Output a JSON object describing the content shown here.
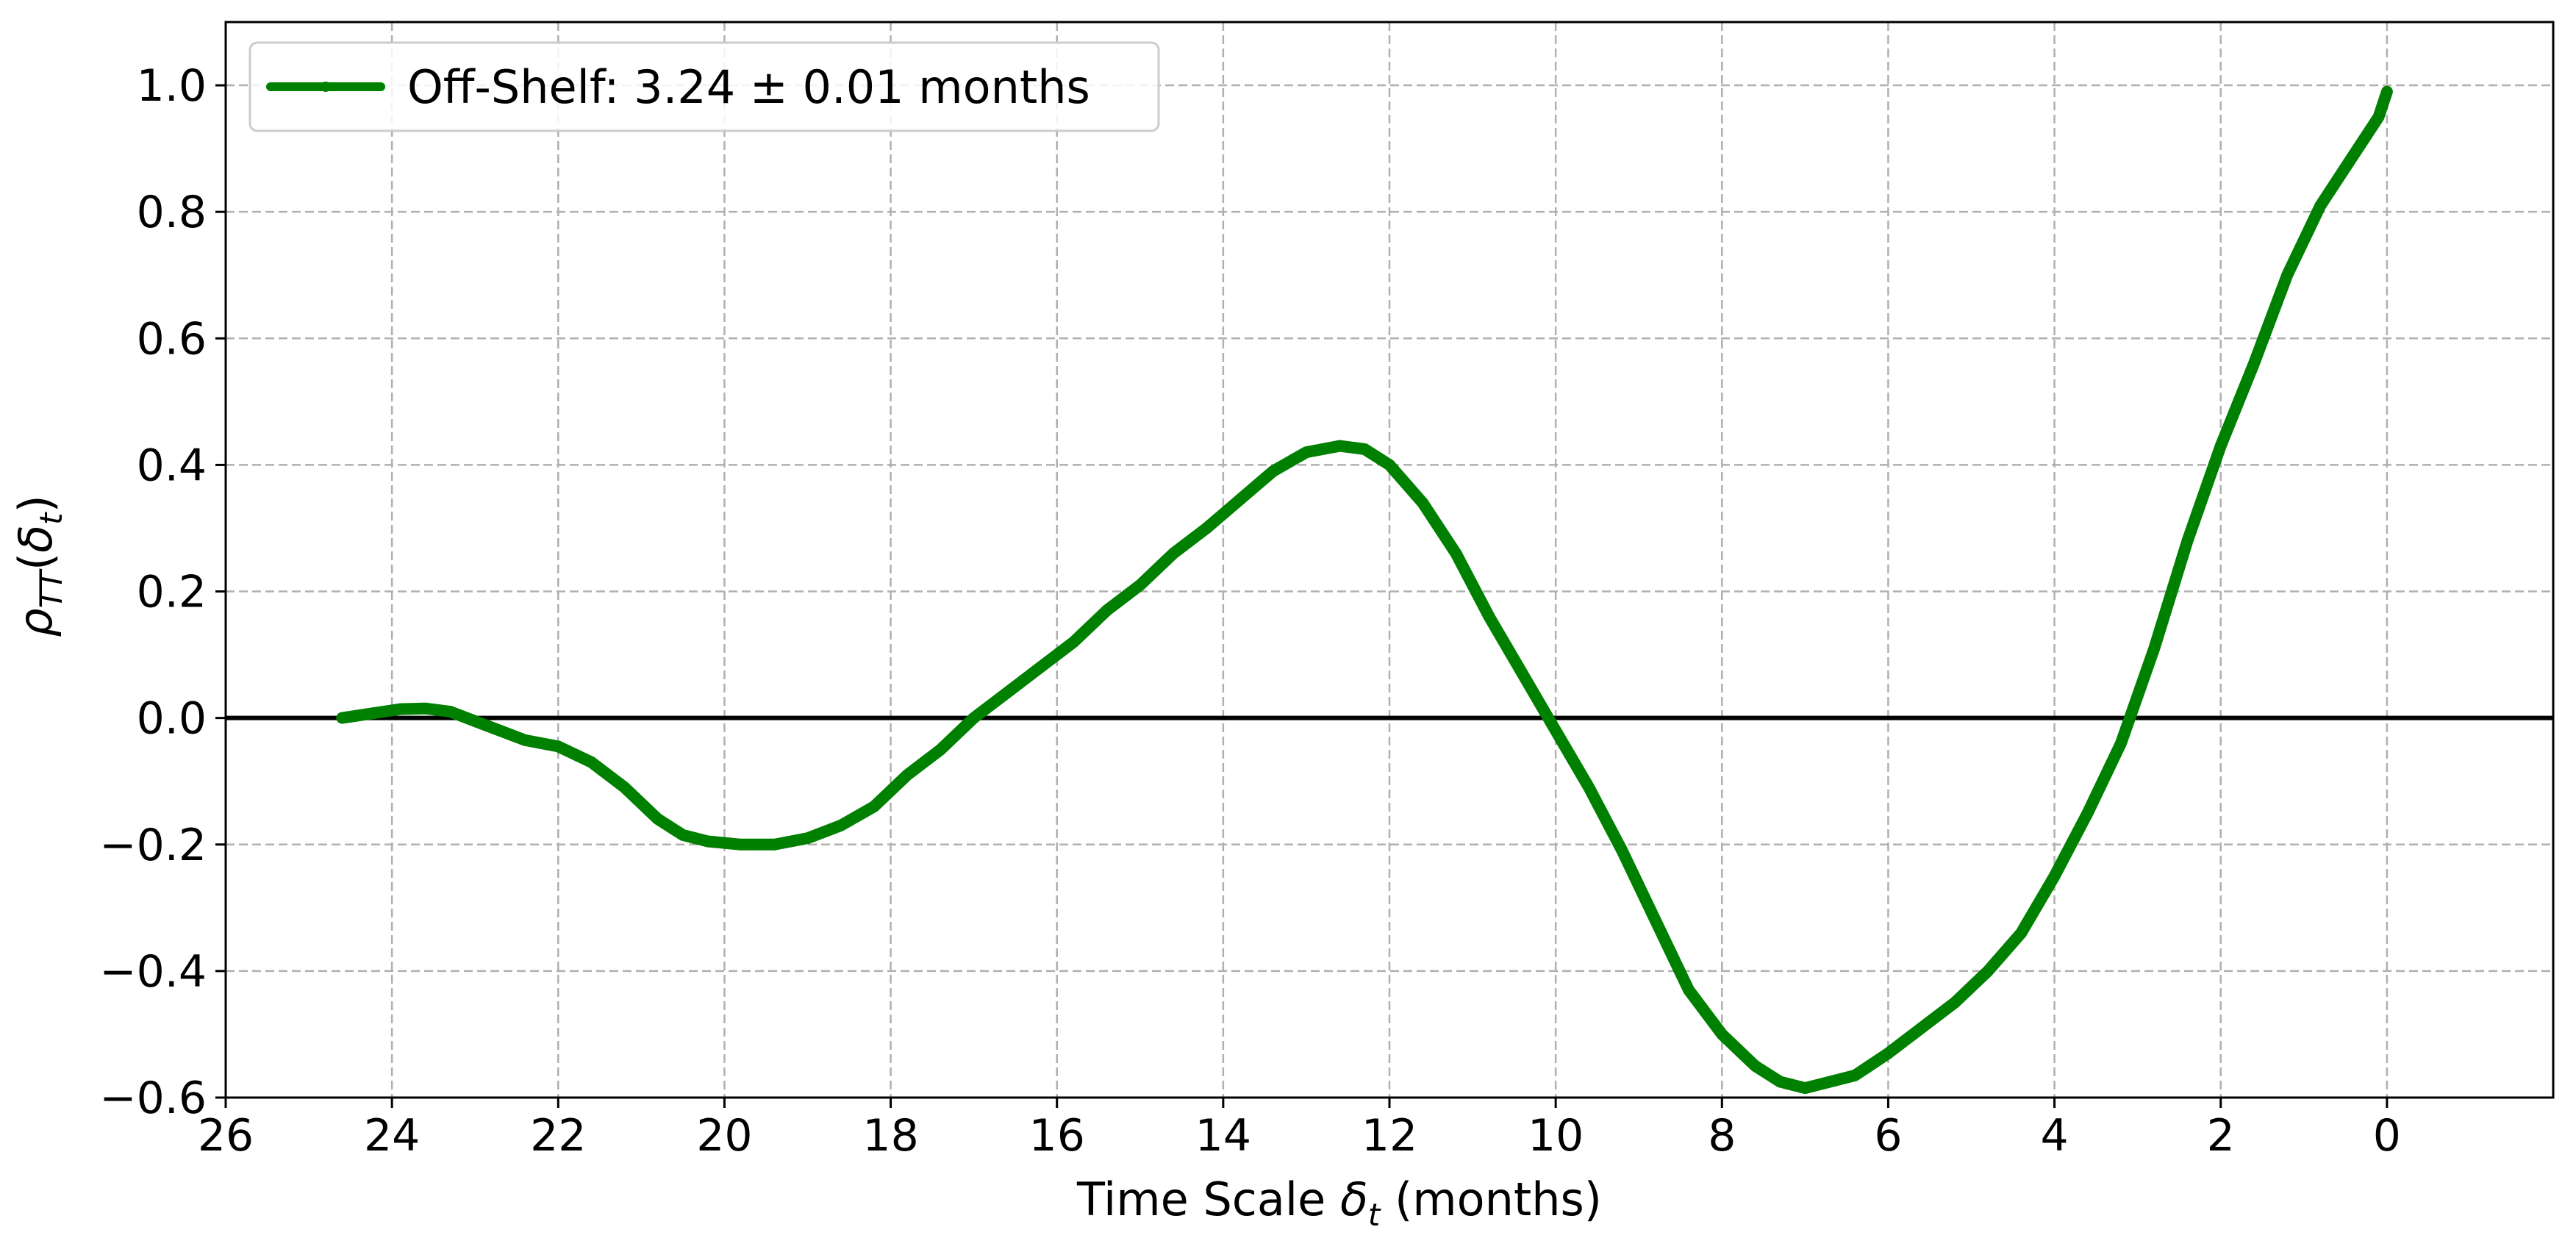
{
  "chart_data": {
    "type": "line",
    "title": "",
    "xlabel": "Time Scale δ_t (months)",
    "xlabel_parts": {
      "pre": "Time Scale ",
      "sym": "δ",
      "sub": "t",
      "post": " (months)"
    },
    "ylabel": "ρ_TT(δ_t)",
    "ylabel_parts": {
      "sym": "ρ",
      "sub": "TT",
      "open": "(",
      "arg": "δ",
      "argsub": "t",
      "close": ")"
    },
    "xlim": [
      26,
      -2
    ],
    "ylim": [
      -0.6,
      1.1
    ],
    "x_inverted": true,
    "x_ticks": [
      26,
      24,
      22,
      20,
      18,
      16,
      14,
      12,
      10,
      8,
      6,
      4,
      2,
      0
    ],
    "x_tick_labels": [
      "26",
      "24",
      "22",
      "20",
      "18",
      "16",
      "14",
      "12",
      "10",
      "8",
      "6",
      "4",
      "2",
      "0"
    ],
    "y_ticks": [
      -0.6,
      -0.4,
      -0.2,
      0.0,
      0.2,
      0.4,
      0.6,
      0.8,
      1.0
    ],
    "y_tick_labels": [
      "−0.6",
      "−0.4",
      "−0.2",
      "0.0",
      "0.2",
      "0.4",
      "0.6",
      "0.8",
      "1.0"
    ],
    "grid": true,
    "legend_position": "top-left",
    "reference_line": {
      "y": 0,
      "color": "#000000"
    },
    "series": [
      {
        "name": "Off-Shelf: 3.24 ± 0.01 months",
        "color": "#008000",
        "x": [
          24.6,
          24.2,
          23.9,
          23.6,
          23.3,
          23.0,
          22.7,
          22.4,
          22.0,
          21.6,
          21.2,
          20.8,
          20.5,
          20.2,
          19.8,
          19.4,
          19.0,
          18.6,
          18.2,
          17.8,
          17.4,
          17.0,
          16.6,
          16.2,
          15.8,
          15.4,
          15.0,
          14.6,
          14.2,
          13.8,
          13.4,
          13.0,
          12.6,
          12.3,
          12.0,
          11.6,
          11.2,
          10.8,
          10.4,
          10.0,
          9.6,
          9.2,
          8.8,
          8.4,
          8.0,
          7.6,
          7.3,
          7.0,
          6.7,
          6.4,
          6.0,
          5.6,
          5.2,
          4.8,
          4.4,
          4.0,
          3.6,
          3.2,
          2.8,
          2.4,
          2.0,
          1.6,
          1.2,
          0.8,
          0.4,
          0.1,
          0.0
        ],
        "y": [
          0.0,
          0.008,
          0.014,
          0.015,
          0.01,
          -0.005,
          -0.02,
          -0.035,
          -0.045,
          -0.07,
          -0.11,
          -0.16,
          -0.185,
          -0.195,
          -0.2,
          -0.2,
          -0.19,
          -0.17,
          -0.14,
          -0.09,
          -0.05,
          0.0,
          0.04,
          0.08,
          0.12,
          0.17,
          0.21,
          0.26,
          0.3,
          0.345,
          0.39,
          0.42,
          0.43,
          0.425,
          0.4,
          0.34,
          0.26,
          0.16,
          0.07,
          -0.02,
          -0.11,
          -0.21,
          -0.32,
          -0.43,
          -0.5,
          -0.55,
          -0.575,
          -0.585,
          -0.575,
          -0.565,
          -0.53,
          -0.49,
          -0.45,
          -0.4,
          -0.34,
          -0.25,
          -0.15,
          -0.04,
          0.11,
          0.28,
          0.43,
          0.56,
          0.7,
          0.81,
          0.89,
          0.95,
          0.99
        ]
      }
    ]
  }
}
